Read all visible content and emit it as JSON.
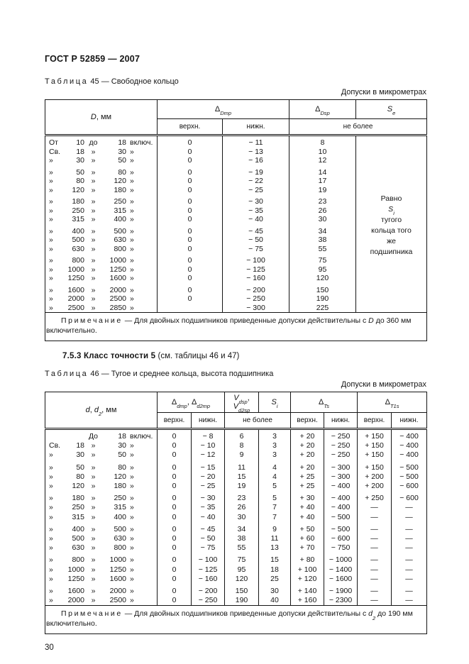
{
  "page": {
    "doc_code": "ГОСТ Р 52859 — 2007",
    "page_number": "30"
  },
  "section": {
    "title": "7.5.3 Класс точности 5",
    "rest": "(см. таблицы 46 и 47)"
  },
  "table45": {
    "caption_label": "Таблица",
    "caption_number": "45",
    "caption_dash": "—",
    "caption_title": "Свободное кольцо",
    "units_label": "Допуски в микрометрах",
    "head": {
      "range": {
        "s1": "D",
        "sep1": "",
        "s2": "",
        "s2sub": "",
        "unit": ", мм"
      },
      "c2": {
        "b1": "Δ",
        "sub1": "Dmp",
        "sep": "",
        "b2": "",
        "sub2": ""
      },
      "c3": {
        "b1": "Δ",
        "sub1": "Dsp",
        "sep": "",
        "b2": "",
        "sub2": ""
      },
      "c4": {
        "b1": "S",
        "sub1": "e",
        "sep": "",
        "b2": "",
        "sub2": ""
      },
      "upper": "верхн.",
      "lower": "нижн.",
      "nomore": "не более"
    },
    "se_note": {
      "line1": "Равно",
      "sym": "S",
      "sym_sub": "i",
      "rest": "тугого кольца того же подшипника"
    },
    "rows": [
      {
        "p": "От",
        "n1": "10",
        "m": "до",
        "n2": "18",
        "s": "включ.",
        "v": [
          "0",
          "− 11",
          "8"
        ]
      },
      {
        "p": "Св.",
        "n1": "18",
        "m": "»",
        "n2": "30",
        "s": "»",
        "v": [
          "0",
          "− 13",
          "10"
        ]
      },
      {
        "p": "»",
        "n1": "30",
        "m": "»",
        "n2": "50",
        "s": "»",
        "v": [
          "0",
          "− 16",
          "12"
        ]
      },
      {
        "p": "»",
        "n1": "50",
        "m": "»",
        "n2": "80",
        "s": "»",
        "v": [
          "0",
          "− 19",
          "14"
        ]
      },
      {
        "p": "»",
        "n1": "80",
        "m": "»",
        "n2": "120",
        "s": "»",
        "v": [
          "0",
          "− 22",
          "17"
        ]
      },
      {
        "p": "»",
        "n1": "120",
        "m": "»",
        "n2": "180",
        "s": "»",
        "v": [
          "0",
          "− 25",
          "19"
        ]
      },
      {
        "p": "»",
        "n1": "180",
        "m": "»",
        "n2": "250",
        "s": "»",
        "v": [
          "0",
          "− 30",
          "23"
        ]
      },
      {
        "p": "»",
        "n1": "250",
        "m": "»",
        "n2": "315",
        "s": "»",
        "v": [
          "0",
          "− 35",
          "26"
        ]
      },
      {
        "p": "»",
        "n1": "315",
        "m": "»",
        "n2": "400",
        "s": "»",
        "v": [
          "0",
          "− 40",
          "30"
        ]
      },
      {
        "p": "»",
        "n1": "400",
        "m": "»",
        "n2": "500",
        "s": "»",
        "v": [
          "0",
          "− 45",
          "34"
        ]
      },
      {
        "p": "»",
        "n1": "500",
        "m": "»",
        "n2": "630",
        "s": "»",
        "v": [
          "0",
          "− 50",
          "38"
        ]
      },
      {
        "p": "»",
        "n1": "630",
        "m": "»",
        "n2": "800",
        "s": "»",
        "v": [
          "0",
          "− 75",
          "55"
        ]
      },
      {
        "p": "»",
        "n1": "800",
        "m": "»",
        "n2": "1000",
        "s": "»",
        "v": [
          "0",
          "− 100",
          "75"
        ]
      },
      {
        "p": "»",
        "n1": "1000",
        "m": "»",
        "n2": "1250",
        "s": "»",
        "v": [
          "0",
          "− 125",
          "95"
        ]
      },
      {
        "p": "»",
        "n1": "1250",
        "m": "»",
        "n2": "1600",
        "s": "»",
        "v": [
          "0",
          "− 160",
          "120"
        ]
      },
      {
        "p": "»",
        "n1": "1600",
        "m": "»",
        "n2": "2000",
        "s": "»",
        "v": [
          "0",
          "− 200",
          "150"
        ]
      },
      {
        "p": "»",
        "n1": "2000",
        "m": "»",
        "n2": "2500",
        "s": "»",
        "v": [
          "0",
          "− 250",
          "190"
        ]
      },
      {
        "p": "»",
        "n1": "2500",
        "m": "»",
        "n2": "2850",
        "s": "»",
        "v": [
          "",
          "− 300",
          "225"
        ]
      }
    ],
    "note": {
      "label": "Примечание",
      "dash": "—",
      "text1": "Для двойных подшипников приведенные допуски действительны с",
      "sym": "D",
      "sym_sub": "",
      "text2": "до 360 мм включительно."
    }
  },
  "table46": {
    "caption_label": "Таблица",
    "caption_number": "46",
    "caption_dash": "—",
    "caption_title": "Тугое и среднее кольца, высота подшипника",
    "units_label": "Допуски в микрометрах",
    "head": {
      "range": {
        "s1": "d",
        "sep1": ", ",
        "s2": "d",
        "s2sub": "2",
        "unit": ", мм"
      },
      "c2": {
        "b1": "Δ",
        "sub1": "dmp",
        "sep": ", ",
        "b2": "Δ",
        "sub2": "d2mp"
      },
      "c3": {
        "b1": "V",
        "sub1": "dsp",
        "sep": ", ",
        "b2": "V",
        "sub2": "d2sp"
      },
      "c4": {
        "b1": "S",
        "sub1": "i",
        "sep": "",
        "b2": "",
        "sub2": ""
      },
      "c5": {
        "b1": "Δ",
        "sub1": "Ts",
        "sep": "",
        "b2": "",
        "sub2": ""
      },
      "c6": {
        "b1": "Δ",
        "sub1": "T1s",
        "sep": "",
        "b2": "",
        "sub2": ""
      },
      "upper": "верхн.",
      "lower": "нижн.",
      "nomore": "не более"
    },
    "rows": [
      {
        "p": "",
        "n1": "",
        "m": "До",
        "n2": "18",
        "s": "включ.",
        "v": [
          "0",
          "− 8",
          "6",
          "3",
          "+ 20",
          "− 250",
          "+ 150",
          "− 400"
        ]
      },
      {
        "p": "Св.",
        "n1": "18",
        "m": "»",
        "n2": "30",
        "s": "»",
        "v": [
          "0",
          "− 10",
          "8",
          "3",
          "+ 20",
          "− 250",
          "+ 150",
          "− 400"
        ]
      },
      {
        "p": "»",
        "n1": "30",
        "m": "»",
        "n2": "50",
        "s": "»",
        "v": [
          "0",
          "− 12",
          "9",
          "3",
          "+ 20",
          "− 250",
          "+ 150",
          "− 400"
        ]
      },
      {
        "p": "»",
        "n1": "50",
        "m": "»",
        "n2": "80",
        "s": "»",
        "v": [
          "0",
          "− 15",
          "11",
          "4",
          "+ 20",
          "− 300",
          "+ 150",
          "− 500"
        ]
      },
      {
        "p": "»",
        "n1": "80",
        "m": "»",
        "n2": "120",
        "s": "»",
        "v": [
          "0",
          "− 20",
          "15",
          "4",
          "+ 25",
          "− 300",
          "+ 200",
          "− 500"
        ]
      },
      {
        "p": "»",
        "n1": "120",
        "m": "»",
        "n2": "180",
        "s": "»",
        "v": [
          "0",
          "− 25",
          "19",
          "5",
          "+ 25",
          "− 400",
          "+ 200",
          "− 600"
        ]
      },
      {
        "p": "»",
        "n1": "180",
        "m": "»",
        "n2": "250",
        "s": "»",
        "v": [
          "0",
          "− 30",
          "23",
          "5",
          "+ 30",
          "− 400",
          "+ 250",
          "− 600"
        ]
      },
      {
        "p": "»",
        "n1": "250",
        "m": "»",
        "n2": "315",
        "s": "»",
        "v": [
          "0",
          "− 35",
          "26",
          "7",
          "+ 40",
          "− 400",
          "—",
          "—"
        ]
      },
      {
        "p": "»",
        "n1": "315",
        "m": "»",
        "n2": "400",
        "s": "»",
        "v": [
          "0",
          "− 40",
          "30",
          "7",
          "+ 40",
          "− 500",
          "—",
          "—"
        ]
      },
      {
        "p": "»",
        "n1": "400",
        "m": "»",
        "n2": "500",
        "s": "»",
        "v": [
          "0",
          "− 45",
          "34",
          "9",
          "+ 50",
          "− 500",
          "—",
          "—"
        ]
      },
      {
        "p": "»",
        "n1": "500",
        "m": "»",
        "n2": "630",
        "s": "»",
        "v": [
          "0",
          "− 50",
          "38",
          "11",
          "+ 60",
          "− 600",
          "—",
          "—"
        ]
      },
      {
        "p": "»",
        "n1": "630",
        "m": "»",
        "n2": "800",
        "s": "»",
        "v": [
          "0",
          "− 75",
          "55",
          "13",
          "+ 70",
          "− 750",
          "—",
          "—"
        ]
      },
      {
        "p": "»",
        "n1": "800",
        "m": "»",
        "n2": "1000",
        "s": "»",
        "v": [
          "0",
          "− 100",
          "75",
          "15",
          "+ 80",
          "− 1000",
          "—",
          "—"
        ]
      },
      {
        "p": "»",
        "n1": "1000",
        "m": "»",
        "n2": "1250",
        "s": "»",
        "v": [
          "0",
          "− 125",
          "95",
          "18",
          "+ 100",
          "− 1400",
          "—",
          "—"
        ]
      },
      {
        "p": "»",
        "n1": "1250",
        "m": "»",
        "n2": "1600",
        "s": "»",
        "v": [
          "0",
          "− 160",
          "120",
          "25",
          "+ 120",
          "− 1600",
          "—",
          "—"
        ]
      },
      {
        "p": "»",
        "n1": "1600",
        "m": "»",
        "n2": "2000",
        "s": "»",
        "v": [
          "0",
          "− 200",
          "150",
          "30",
          "+ 140",
          "− 1900",
          "—",
          "—"
        ]
      },
      {
        "p": "»",
        "n1": "2000",
        "m": "»",
        "n2": "2500",
        "s": "»",
        "v": [
          "0",
          "− 250",
          "190",
          "40",
          "+ 160",
          "− 2300",
          "—",
          "—"
        ]
      }
    ],
    "note": {
      "label": "Примечание",
      "dash": "—",
      "text1": "Для двойных подшипников приведенные допуски действительны с",
      "sym": "d",
      "sym_sub": "2",
      "text2": "до 190 мм включительно."
    }
  }
}
